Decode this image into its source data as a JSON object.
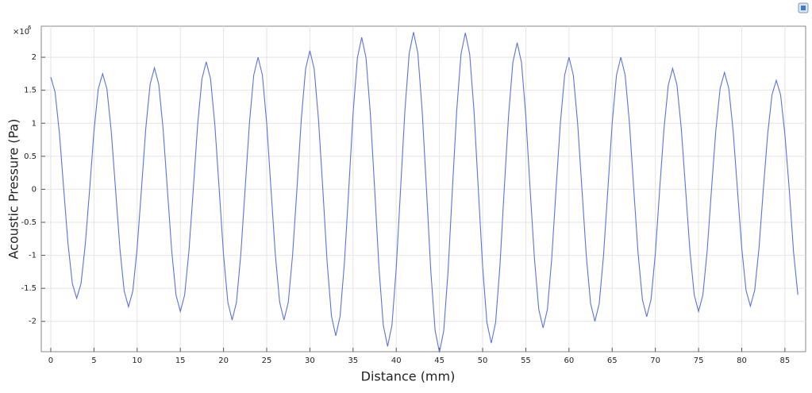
{
  "chart_data": {
    "type": "line",
    "xlabel": "Distance (mm)",
    "ylabel": "Acoustic Pressure (Pa)",
    "y_multiplier": {
      "base": "×10",
      "exponent": "6"
    },
    "grid": true,
    "xlim": [
      -1.1,
      87.4
    ],
    "ylim": [
      -2.46,
      2.47
    ],
    "xticks": [
      0,
      5,
      10,
      15,
      20,
      25,
      30,
      35,
      40,
      45,
      50,
      55,
      60,
      65,
      70,
      75,
      80,
      85
    ],
    "yticks": [
      -2,
      -1.5,
      -1,
      -0.5,
      0,
      0.5,
      1,
      1.5,
      2
    ],
    "x": [
      0,
      0.5,
      1,
      1.5,
      2,
      2.5,
      3,
      3.5,
      4,
      4.5,
      5,
      5.5,
      6,
      6.5,
      7,
      7.5,
      8,
      8.5,
      9,
      9.5,
      10,
      10.5,
      11,
      11.5,
      12,
      12.5,
      13,
      13.5,
      14,
      14.5,
      15,
      15.5,
      16,
      16.5,
      17,
      17.5,
      18,
      18.5,
      19,
      19.5,
      20,
      20.5,
      21,
      21.5,
      22,
      22.5,
      23,
      23.5,
      24,
      24.5,
      25,
      25.5,
      26,
      26.5,
      27,
      27.5,
      28,
      28.5,
      29,
      29.5,
      30,
      30.5,
      31,
      31.5,
      32,
      32.5,
      33,
      33.5,
      34,
      34.5,
      35,
      35.5,
      36,
      36.5,
      37,
      37.5,
      38,
      38.5,
      39,
      39.5,
      40,
      40.5,
      41,
      41.5,
      42,
      42.5,
      43,
      43.5,
      44,
      44.5,
      45,
      45.5,
      46,
      46.5,
      47,
      47.5,
      48,
      48.5,
      49,
      49.5,
      50,
      50.5,
      51,
      51.5,
      52,
      52.5,
      53,
      53.5,
      54,
      54.5,
      55,
      55.5,
      56,
      56.5,
      57,
      57.5,
      58,
      58.5,
      59,
      59.5,
      60,
      60.5,
      61,
      61.5,
      62,
      62.5,
      63,
      63.5,
      64,
      64.5,
      65,
      65.5,
      66,
      66.5,
      67,
      67.5,
      68,
      68.5,
      69,
      69.5,
      70,
      70.5,
      71,
      71.5,
      72,
      72.5,
      73,
      73.5,
      74,
      74.5,
      75,
      75.5,
      76,
      76.5,
      77,
      77.5,
      78,
      78.5,
      79,
      79.5,
      80,
      80.5,
      81,
      81.5,
      82,
      82.5,
      83,
      83.5,
      84,
      84.5,
      85,
      85.5,
      86,
      86.5
    ],
    "series": [
      {
        "color": "#5a73e0",
        "values": [
          1.7,
          1.47,
          0.85,
          0,
          -0.83,
          -1.43,
          -1.65,
          -1.43,
          -0.83,
          0,
          0.88,
          1.52,
          1.75,
          1.52,
          0.88,
          0,
          -0.89,
          -1.54,
          -1.78,
          -1.54,
          -0.89,
          0,
          0.92,
          1.59,
          1.84,
          1.59,
          0.92,
          0,
          -0.93,
          -1.6,
          -1.85,
          -1.6,
          -0.93,
          0,
          0.97,
          1.67,
          1.93,
          1.67,
          0.97,
          0,
          -0.99,
          -1.71,
          -1.98,
          -1.71,
          -0.99,
          0,
          1.0,
          1.73,
          2.0,
          1.73,
          1.0,
          0,
          -0.99,
          -1.71,
          -1.98,
          -1.71,
          -0.99,
          0,
          1.05,
          1.82,
          2.1,
          1.82,
          1.05,
          0,
          -1.11,
          -1.92,
          -2.22,
          -1.92,
          -1.11,
          0,
          1.15,
          1.99,
          2.3,
          1.99,
          1.15,
          0,
          -1.19,
          -2.06,
          -2.38,
          -2.06,
          -1.19,
          0,
          1.19,
          2.06,
          2.38,
          2.06,
          1.19,
          0,
          -1.24,
          -2.14,
          -2.47,
          -2.14,
          -1.24,
          0,
          1.19,
          2.05,
          2.37,
          2.05,
          1.19,
          0,
          -1.17,
          -2.02,
          -2.33,
          -2.02,
          -1.17,
          0,
          1.11,
          1.92,
          2.22,
          1.92,
          1.11,
          0,
          -1.05,
          -1.82,
          -2.1,
          -1.82,
          -1.05,
          0,
          1.0,
          1.73,
          2.0,
          1.73,
          1.0,
          0,
          -1.0,
          -1.73,
          -2.0,
          -1.73,
          -1.0,
          0,
          1.0,
          1.73,
          2.0,
          1.73,
          1.0,
          0,
          -0.97,
          -1.67,
          -1.93,
          -1.67,
          -0.97,
          0,
          0.92,
          1.58,
          1.83,
          1.58,
          0.92,
          0,
          -0.93,
          -1.6,
          -1.85,
          -1.6,
          -0.93,
          0,
          0.89,
          1.53,
          1.77,
          1.53,
          0.89,
          0,
          -0.89,
          -1.53,
          -1.77,
          -1.53,
          -0.89,
          0,
          0.83,
          1.43,
          1.65,
          1.43,
          0.83,
          0,
          -0.95,
          -1.6
        ]
      }
    ]
  }
}
